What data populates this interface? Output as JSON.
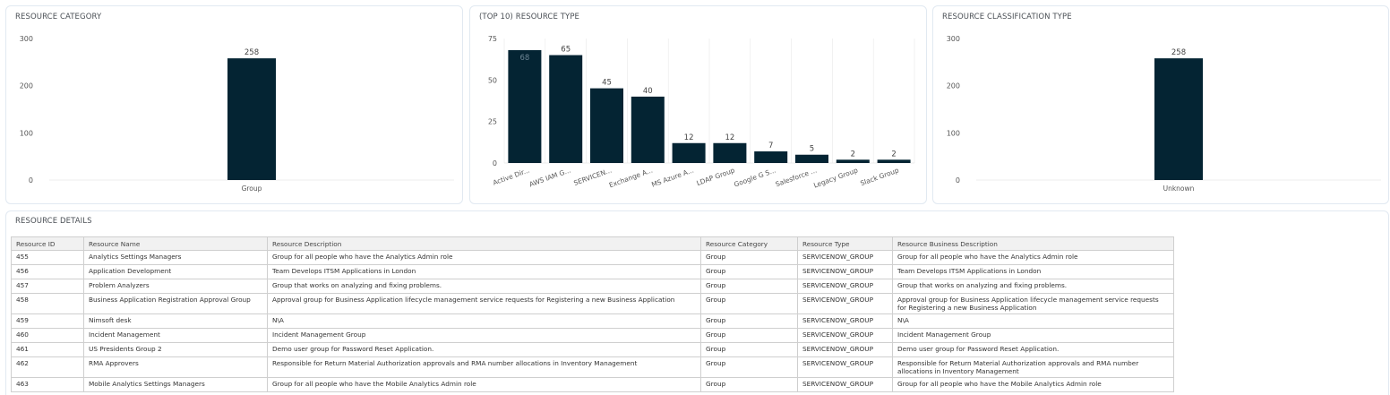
{
  "panels": {
    "category_title": "RESOURCE CATEGORY",
    "type_title": "(TOP 10) RESOURCE TYPE",
    "classification_title": "RESOURCE CLASSIFICATION TYPE",
    "details_title": "RESOURCE DETAILS"
  },
  "colors": {
    "bar": "#042433",
    "grid": "#e8e8e8",
    "text": "#555555",
    "border": "#e1e9f1"
  },
  "chart_data": [
    {
      "type": "bar",
      "title": "RESOURCE CATEGORY",
      "categories": [
        "Group"
      ],
      "values": [
        258
      ],
      "ylim": [
        0,
        300
      ],
      "yticks": [
        0,
        100,
        200,
        300
      ],
      "grid": false
    },
    {
      "type": "bar",
      "title": "(TOP 10) RESOURCE TYPE",
      "categories": [
        "Active Dir...",
        "AWS IAM G...",
        "SERVICEN...",
        "Exchange A...",
        "MS Azure A...",
        "LDAP Group",
        "Google G S...",
        "Salesforce ...",
        "Legacy Group",
        "Slack Group"
      ],
      "values": [
        68,
        65,
        45,
        40,
        12,
        12,
        7,
        5,
        2,
        2
      ],
      "ylim": [
        0,
        75
      ],
      "yticks": [
        0,
        25,
        50,
        75
      ],
      "grid": true
    },
    {
      "type": "bar",
      "title": "RESOURCE CLASSIFICATION TYPE",
      "categories": [
        "Unknown"
      ],
      "values": [
        258
      ],
      "ylim": [
        0,
        300
      ],
      "yticks": [
        0,
        100,
        200,
        300
      ],
      "grid": false
    }
  ],
  "table": {
    "columns": [
      "Resource ID",
      "Resource Name",
      "Resource Description",
      "Resource Category",
      "Resource Type",
      "Resource Business Description"
    ],
    "rows": [
      [
        "455",
        "Analytics Settings Managers",
        "Group for all people who have the Analytics Admin role",
        "Group",
        "SERVICENOW_GROUP",
        "Group for all people who have the Analytics Admin role"
      ],
      [
        "456",
        "Application Development",
        "Team Develops ITSM Applications in London",
        "Group",
        "SERVICENOW_GROUP",
        "Team Develops ITSM Applications in London"
      ],
      [
        "457",
        "Problem Analyzers",
        "Group that works on analyzing and fixing problems.",
        "Group",
        "SERVICENOW_GROUP",
        "Group that works on analyzing and fixing problems."
      ],
      [
        "458",
        "Business Application Registration Approval Group",
        "Approval group for Business Application lifecycle management service requests for Registering a new Business Application",
        "Group",
        "SERVICENOW_GROUP",
        "Approval group for Business Application lifecycle management service requests for Registering a new Business Application"
      ],
      [
        "459",
        "Nimsoft desk",
        "N\\A",
        "Group",
        "SERVICENOW_GROUP",
        "N\\A"
      ],
      [
        "460",
        "Incident Management",
        "Incident Management Group",
        "Group",
        "SERVICENOW_GROUP",
        "Incident Management Group"
      ],
      [
        "461",
        "US Presidents Group 2",
        "Demo user group for Password Reset Application.",
        "Group",
        "SERVICENOW_GROUP",
        "Demo user group for Password Reset Application."
      ],
      [
        "462",
        "RMA Approvers",
        "Responsible for Return Material Authorization approvals and RMA number allocations in Inventory Management",
        "Group",
        "SERVICENOW_GROUP",
        "Responsible for Return Material Authorization approvals and RMA number allocations in Inventory Management"
      ],
      [
        "463",
        "Mobile Analytics Settings Managers",
        "Group for all people who have the Mobile Analytics Admin role",
        "Group",
        "SERVICENOW_GROUP",
        "Group for all people who have the Mobile Analytics Admin role"
      ]
    ]
  }
}
